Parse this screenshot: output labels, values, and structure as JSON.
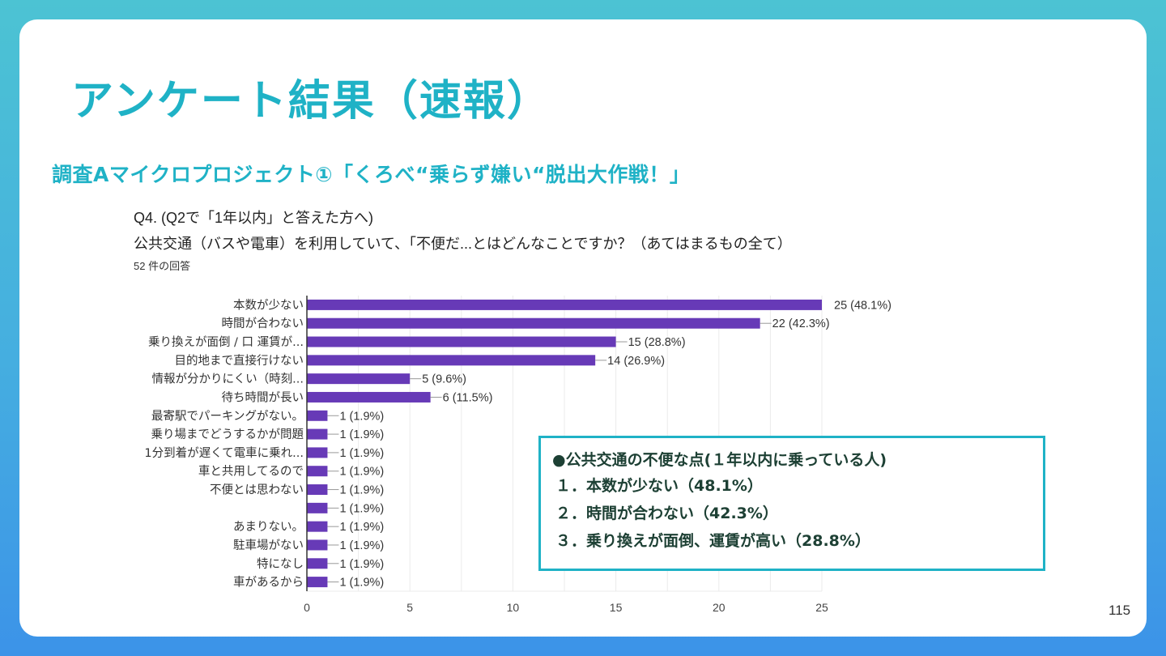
{
  "slide": {
    "title": "アンケート結果（速報）",
    "subtitle": "調査Aマイクロプロジェクト①「くろべ“乗らず嫌い“脱出大作戦！」",
    "page_number": "115"
  },
  "question": {
    "line1": "Q4. (Q2で「1年以内」と答えた方へ)",
    "line2": "公共交通（バスや電車）を利用していて、「不便だ...とはどんなことですか？（あてはまるもの全て）",
    "response_count": "52 件の回答"
  },
  "chart_data": {
    "type": "bar",
    "orientation": "horizontal",
    "title": "",
    "xlabel": "",
    "ylabel": "",
    "xlim": [
      0,
      25
    ],
    "x_ticks": [
      0,
      5,
      10,
      15,
      20,
      25
    ],
    "grid": true,
    "bar_color": "#673ab7",
    "categories": [
      "本数が少ない",
      "時間が合わない",
      "乗り換えが面倒 / 口 運賃が...",
      "目的地まで直接行けない",
      "情報が分かりにくい（時刻...",
      "待ち時間が長い",
      "最寄駅でパーキングがない。",
      "乗り場までどうするかが問題",
      "1分到着が遅くて電車に乗れ...",
      "車と共用してるので",
      "不便とは思わない",
      "",
      "あまりない。",
      "駐車場がない",
      "特になし",
      "車があるから"
    ],
    "values": [
      25,
      22,
      15,
      14,
      5,
      6,
      1,
      1,
      1,
      1,
      1,
      1,
      1,
      1,
      1,
      1
    ],
    "labels": [
      "25 (48.1%)",
      "22 (42.3%)",
      "15 (28.8%)",
      "14 (26.9%)",
      "5 (9.6%)",
      "6 (11.5%)",
      "1 (1.9%)",
      "1 (1.9%)",
      "1 (1.9%)",
      "1 (1.9%)",
      "1 (1.9%)",
      "1 (1.9%)",
      "1 (1.9%)",
      "1 (1.9%)",
      "1 (1.9%)",
      "1 (1.9%)"
    ]
  },
  "callout": {
    "heading": "●公共交通の不便な点(１年以内に乗っている人)",
    "items": [
      "１．本数が少ない（48.1%）",
      "２．時間が合わない（42.3%）",
      "３．乗り換えが面倒、運賃が高い（28.8%）"
    ],
    "border_color": "#1fb2c6"
  }
}
